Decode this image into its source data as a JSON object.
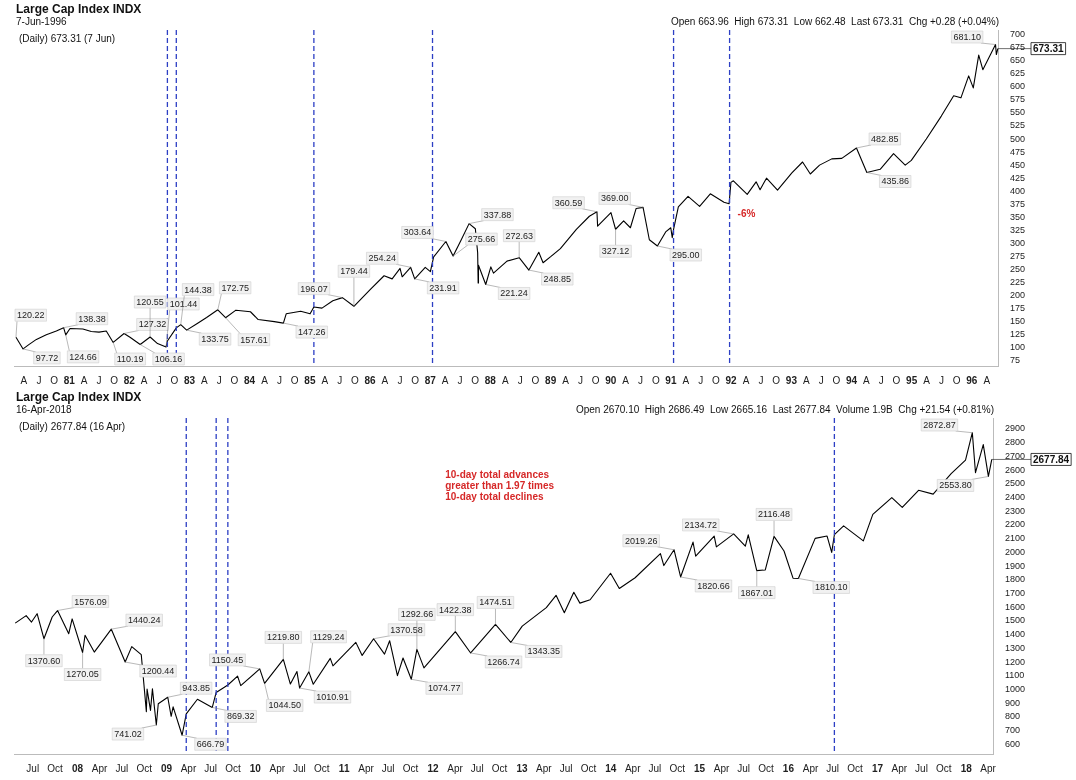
{
  "chart_data": [
    {
      "type": "line",
      "title": "Large Cap Index INDX",
      "subtitle": "7-Jun-1996",
      "legend": false,
      "grid": false,
      "marker": "none",
      "line_style": "solid",
      "xlim": [
        "1980-02-01",
        "1996-06-14"
      ],
      "xticks": [
        {
          "value": "1980-04",
          "label": "A"
        },
        {
          "value": "1980-07",
          "label": "J"
        },
        {
          "value": "1980-10",
          "label": "O"
        },
        {
          "value": "1981-01",
          "label": "81"
        },
        {
          "value": "1981-04",
          "label": "A"
        },
        {
          "value": "1981-07",
          "label": "J"
        },
        {
          "value": "1981-10",
          "label": "O"
        },
        {
          "value": "1982-01",
          "label": "82"
        },
        {
          "value": "1982-04",
          "label": "A"
        },
        {
          "value": "1982-07",
          "label": "J"
        },
        {
          "value": "1982-10",
          "label": "O"
        },
        {
          "value": "1983-01",
          "label": "83"
        },
        {
          "value": "1983-04",
          "label": "A"
        },
        {
          "value": "1983-07",
          "label": "J"
        },
        {
          "value": "1983-10",
          "label": "O"
        },
        {
          "value": "1984-01",
          "label": "84"
        },
        {
          "value": "1984-04",
          "label": "A"
        },
        {
          "value": "1984-07",
          "label": "J"
        },
        {
          "value": "1984-10",
          "label": "O"
        },
        {
          "value": "1985-01",
          "label": "85"
        },
        {
          "value": "1985-04",
          "label": "A"
        },
        {
          "value": "1985-07",
          "label": "J"
        },
        {
          "value": "1985-10",
          "label": "O"
        },
        {
          "value": "1986-01",
          "label": "86"
        },
        {
          "value": "1986-04",
          "label": "A"
        },
        {
          "value": "1986-07",
          "label": "J"
        },
        {
          "value": "1986-10",
          "label": "O"
        },
        {
          "value": "1987-01",
          "label": "87"
        },
        {
          "value": "1987-04",
          "label": "A"
        },
        {
          "value": "1987-07",
          "label": "J"
        },
        {
          "value": "1987-10",
          "label": "O"
        },
        {
          "value": "1988-01",
          "label": "88"
        },
        {
          "value": "1988-04",
          "label": "A"
        },
        {
          "value": "1988-07",
          "label": "J"
        },
        {
          "value": "1988-10",
          "label": "O"
        },
        {
          "value": "1989-01",
          "label": "89"
        },
        {
          "value": "1989-04",
          "label": "A"
        },
        {
          "value": "1989-07",
          "label": "J"
        },
        {
          "value": "1989-10",
          "label": "O"
        },
        {
          "value": "1990-01",
          "label": "90"
        },
        {
          "value": "1990-04",
          "label": "A"
        },
        {
          "value": "1990-07",
          "label": "J"
        },
        {
          "value": "1990-10",
          "label": "O"
        },
        {
          "value": "1991-01",
          "label": "91"
        },
        {
          "value": "1991-04",
          "label": "A"
        },
        {
          "value": "1991-07",
          "label": "J"
        },
        {
          "value": "1991-10",
          "label": "O"
        },
        {
          "value": "1992-01",
          "label": "92"
        },
        {
          "value": "1992-04",
          "label": "A"
        },
        {
          "value": "1992-07",
          "label": "J"
        },
        {
          "value": "1992-10",
          "label": "O"
        },
        {
          "value": "1993-01",
          "label": "93"
        },
        {
          "value": "1993-04",
          "label": "A"
        },
        {
          "value": "1993-07",
          "label": "J"
        },
        {
          "value": "1993-10",
          "label": "O"
        },
        {
          "value": "1994-01",
          "label": "94"
        },
        {
          "value": "1994-04",
          "label": "A"
        },
        {
          "value": "1994-07",
          "label": "J"
        },
        {
          "value": "1994-10",
          "label": "O"
        },
        {
          "value": "1995-01",
          "label": "95"
        },
        {
          "value": "1995-04",
          "label": "A"
        },
        {
          "value": "1995-07",
          "label": "J"
        },
        {
          "value": "1995-10",
          "label": "O"
        },
        {
          "value": "1996-01",
          "label": "96"
        },
        {
          "value": "1996-04",
          "label": "A"
        }
      ],
      "ylim": [
        65,
        709
      ],
      "yticks": [
        75,
        100,
        125,
        150,
        175,
        200,
        225,
        250,
        275,
        300,
        325,
        350,
        375,
        400,
        425,
        450,
        475,
        500,
        525,
        550,
        575,
        600,
        625,
        650,
        675,
        700
      ],
      "series": [
        {
          "color": "#000000",
          "x": [
            "1980-02-13",
            "1980-03-27",
            "1980-05-01",
            "1980-06-16",
            "1980-08-15",
            "1980-10-15",
            "1980-11-28",
            "1980-12-11",
            "1981-01-06",
            "1981-03-25",
            "1981-05-15",
            "1981-07-01",
            "1981-08-14",
            "1981-09-25",
            "1981-11-30",
            "1982-01-05",
            "1982-03-08",
            "1982-05-07",
            "1982-06-21",
            "1982-08-12",
            "1982-08-20",
            "1982-10-13",
            "1982-11-09",
            "1982-12-15",
            "1983-02-15",
            "1983-04-15",
            "1983-06-22",
            "1983-08-08",
            "1983-10-10",
            "1984-01-06",
            "1984-02-22",
            "1984-05-30",
            "1984-07-24",
            "1984-08-10",
            "1984-11-06",
            "1985-01-02",
            "1985-01-25",
            "1985-03-15",
            "1985-05-20",
            "1985-07-17",
            "1985-09-25",
            "1985-12-31",
            "1986-03-27",
            "1986-05-15",
            "1986-07-02",
            "1986-07-15",
            "1986-09-04",
            "1986-09-29",
            "1986-12-02",
            "1987-01-02",
            "1987-01-22",
            "1987-04-06",
            "1987-05-20",
            "1987-07-10",
            "1987-08-25",
            "1987-10-02",
            "1987-10-16",
            "1987-10-19",
            "1987-10-21",
            "1987-12-04",
            "1988-01-04",
            "1988-01-20",
            "1988-04-11",
            "1988-06-24",
            "1988-08-22",
            "1988-10-21",
            "1988-11-16",
            "1989-01-03",
            "1989-03-01",
            "1989-06-06",
            "1989-08-24",
            "1989-10-09",
            "1989-10-13",
            "1990-01-02",
            "1990-01-30",
            "1990-03-20",
            "1990-04-30",
            "1990-06-04",
            "1990-07-16",
            "1990-08-23",
            "1990-10-11",
            "1990-11-30",
            "1990-12-31",
            "1991-01-09",
            "1991-01-17",
            "1991-02-15",
            "1991-04-15",
            "1991-06-24",
            "1991-08-28",
            "1991-11-19",
            "1991-12-20",
            "1991-12-31",
            "1992-01-15",
            "1992-04-08",
            "1992-06-01",
            "1992-06-25",
            "1992-08-03",
            "1992-10-09",
            "1993-01-04",
            "1993-03-10",
            "1993-04-26",
            "1993-06-21",
            "1993-09-03",
            "1993-11-03",
            "1994-01-31",
            "1994-04-04",
            "1994-06-24",
            "1994-09-13",
            "1994-11-23",
            "1994-12-30",
            "1995-03-31",
            "1995-06-30",
            "1995-09-13",
            "1995-10-27",
            "1995-12-13",
            "1996-01-10",
            "1996-02-12",
            "1996-03-08",
            "1996-05-24",
            "1996-05-29",
            "1996-06-07"
          ],
          "values": [
            120.22,
            97.72,
            106,
            116,
            125,
            132,
            138.38,
            124.66,
            137,
            136,
            131,
            130,
            132,
            110.19,
            127.32,
            120,
            106.16,
            120.55,
            108,
            101.44,
            113,
            138,
            144.38,
            133.75,
            146,
            158,
            172.75,
            157.61,
            172,
            169,
            154,
            150,
            147.26,
            165,
            170,
            165,
            178,
            176,
            190,
            196.07,
            179.44,
            211,
            238,
            232,
            252,
            236,
            254.24,
            231.91,
            254,
            246,
            274,
            303.64,
            275.66,
            308,
            337.88,
            328,
            282,
            224,
            258,
            221.24,
            255,
            243,
            266,
            272.63,
            248.85,
            283,
            263,
            275,
            290,
            327,
            352,
            360.59,
            333,
            359,
            327.12,
            343,
            330,
            367,
            369,
            307,
            295,
            322,
            330,
            311,
            327,
            370,
            390,
            371,
            395,
            379,
            376,
            417,
            420,
            394,
            418,
            403,
            425,
            402,
            435,
            456,
            433,
            450,
            462,
            463,
            482.85,
            435.86,
            442,
            472,
            450,
            459,
            500,
            544,
            583,
            579,
            621,
            598,
            661,
            633,
            681.1,
            662,
            673.31
          ]
        }
      ],
      "ref_lines": [
        {
          "axis": "x",
          "value": "1982-08-20",
          "color": "#2d3fc4",
          "line_style": "dashed"
        },
        {
          "axis": "x",
          "value": "1982-10-13",
          "color": "#2d3fc4",
          "line_style": "dashed"
        },
        {
          "axis": "x",
          "value": "1985-01-25",
          "color": "#2d3fc4",
          "line_style": "dashed"
        },
        {
          "axis": "x",
          "value": "1987-01-15",
          "color": "#2d3fc4",
          "line_style": "dashed"
        },
        {
          "axis": "x",
          "value": "1991-01-17",
          "color": "#2d3fc4",
          "line_style": "dashed"
        },
        {
          "axis": "x",
          "value": "1991-12-23",
          "color": "#2d3fc4",
          "line_style": "dashed",
          "label": "-6%"
        }
      ],
      "annotations": [
        "(Daily) 673.31 (7 Jun)",
        "Open 663.96  High 673.31  Low 662.48  Last 673.31  Chg +0.28 (+0.04%)",
        {
          "text": "120.22",
          "x": "1980-02-13",
          "y": 120.22
        },
        {
          "text": "97.72",
          "x": "1980-03-27",
          "y": 97.72
        },
        {
          "text": "138.38",
          "x": "1980-11-28",
          "y": 138.38
        },
        {
          "text": "124.66",
          "x": "1980-12-11",
          "y": 124.66
        },
        {
          "text": "110.19",
          "x": "1981-09-25",
          "y": 110.19
        },
        {
          "text": "127.32",
          "x": "1981-11-30",
          "y": 127.32
        },
        {
          "text": "106.16",
          "x": "1982-03-08",
          "y": 106.16
        },
        {
          "text": "120.55",
          "x": "1982-05-07",
          "y": 120.55
        },
        {
          "text": "101.44",
          "x": "1982-08-12",
          "y": 101.44
        },
        {
          "text": "144.38",
          "x": "1982-11-09",
          "y": 144.38
        },
        {
          "text": "133.75",
          "x": "1982-12-15",
          "y": 133.75
        },
        {
          "text": "172.75",
          "x": "1983-06-22",
          "y": 172.75
        },
        {
          "text": "157.61",
          "x": "1983-08-08",
          "y": 157.61
        },
        {
          "text": "147.26",
          "x": "1984-07-24",
          "y": 147.26
        },
        {
          "text": "196.07",
          "x": "1985-07-17",
          "y": 196.07
        },
        {
          "text": "179.44",
          "x": "1985-09-25",
          "y": 179.44
        },
        {
          "text": "254.24",
          "x": "1986-09-04",
          "y": 254.24
        },
        {
          "text": "231.91",
          "x": "1986-09-29",
          "y": 231.91
        },
        {
          "text": "303.64",
          "x": "1987-04-06",
          "y": 303.64
        },
        {
          "text": "275.66",
          "x": "1987-05-20",
          "y": 275.66
        },
        {
          "text": "337.88",
          "x": "1987-08-25",
          "y": 337.88
        },
        {
          "text": "221.24",
          "x": "1987-12-04",
          "y": 221.24
        },
        {
          "text": "272.63",
          "x": "1988-06-24",
          "y": 272.63
        },
        {
          "text": "248.85",
          "x": "1988-08-22",
          "y": 248.85
        },
        {
          "text": "360.59",
          "x": "1989-10-09",
          "y": 360.59
        },
        {
          "text": "327.12",
          "x": "1990-01-30",
          "y": 327.12
        },
        {
          "text": "369.00",
          "x": "1990-07-16",
          "y": 369
        },
        {
          "text": "295.00",
          "x": "1990-10-11",
          "y": 295
        },
        {
          "text": "482.85",
          "x": "1994-01-31",
          "y": 482.85
        },
        {
          "text": "435.86",
          "x": "1994-04-04",
          "y": 435.86
        },
        {
          "text": "681.10",
          "x": "1996-05-24",
          "y": 681.1
        },
        {
          "text": "673.31",
          "x": "1996-06-07",
          "y": 673.31
        }
      ]
    },
    {
      "type": "line",
      "title": "Large Cap Index INDX",
      "subtitle": "16-Apr-2018",
      "legend": false,
      "grid": false,
      "marker": "none",
      "line_style": "solid",
      "xlim": [
        "2007-04-15",
        "2018-04-25"
      ],
      "xticks": [
        {
          "value": "2007-07",
          "label": "Jul"
        },
        {
          "value": "2007-10",
          "label": "Oct"
        },
        {
          "value": "2008-01",
          "label": "08"
        },
        {
          "value": "2008-04",
          "label": "Apr"
        },
        {
          "value": "2008-07",
          "label": "Jul"
        },
        {
          "value": "2008-10",
          "label": "Oct"
        },
        {
          "value": "2009-01",
          "label": "09"
        },
        {
          "value": "2009-04",
          "label": "Apr"
        },
        {
          "value": "2009-07",
          "label": "Jul"
        },
        {
          "value": "2009-10",
          "label": "Oct"
        },
        {
          "value": "2010-01",
          "label": "10"
        },
        {
          "value": "2010-04",
          "label": "Apr"
        },
        {
          "value": "2010-07",
          "label": "Jul"
        },
        {
          "value": "2010-10",
          "label": "Oct"
        },
        {
          "value": "2011-01",
          "label": "11"
        },
        {
          "value": "2011-04",
          "label": "Apr"
        },
        {
          "value": "2011-07",
          "label": "Jul"
        },
        {
          "value": "2011-10",
          "label": "Oct"
        },
        {
          "value": "2012-01",
          "label": "12"
        },
        {
          "value": "2012-04",
          "label": "Apr"
        },
        {
          "value": "2012-07",
          "label": "Jul"
        },
        {
          "value": "2012-10",
          "label": "Oct"
        },
        {
          "value": "2013-01",
          "label": "13"
        },
        {
          "value": "2013-04",
          "label": "Apr"
        },
        {
          "value": "2013-07",
          "label": "Jul"
        },
        {
          "value": "2013-10",
          "label": "Oct"
        },
        {
          "value": "2014-01",
          "label": "14"
        },
        {
          "value": "2014-04",
          "label": "Apr"
        },
        {
          "value": "2014-07",
          "label": "Jul"
        },
        {
          "value": "2014-10",
          "label": "Oct"
        },
        {
          "value": "2015-01",
          "label": "15"
        },
        {
          "value": "2015-04",
          "label": "Apr"
        },
        {
          "value": "2015-07",
          "label": "Jul"
        },
        {
          "value": "2015-10",
          "label": "Oct"
        },
        {
          "value": "2016-01",
          "label": "16"
        },
        {
          "value": "2016-04",
          "label": "Apr"
        },
        {
          "value": "2016-07",
          "label": "Jul"
        },
        {
          "value": "2016-10",
          "label": "Oct"
        },
        {
          "value": "2017-01",
          "label": "17"
        },
        {
          "value": "2017-04",
          "label": "Apr"
        },
        {
          "value": "2017-07",
          "label": "Jul"
        },
        {
          "value": "2017-10",
          "label": "Oct"
        },
        {
          "value": "2018-01",
          "label": "18"
        },
        {
          "value": "2018-04",
          "label": "Apr"
        }
      ],
      "ylim": [
        530,
        2980
      ],
      "yticks": [
        600,
        700,
        800,
        900,
        1000,
        1100,
        1200,
        1300,
        1400,
        1500,
        1600,
        1700,
        1800,
        1900,
        2000,
        2100,
        2200,
        2300,
        2400,
        2500,
        2600,
        2700,
        2800,
        2900
      ],
      "series": [
        {
          "color": "#000000",
          "x": [
            "2007-04-20",
            "2007-06-04",
            "2007-06-26",
            "2007-07-19",
            "2007-08-16",
            "2007-09-19",
            "2007-10-11",
            "2007-11-26",
            "2007-12-10",
            "2008-01-22",
            "2008-02-01",
            "2008-03-10",
            "2008-05-19",
            "2008-07-15",
            "2008-08-11",
            "2008-09-19",
            "2008-10-10",
            "2008-10-13",
            "2008-10-27",
            "2008-11-04",
            "2008-11-20",
            "2008-11-28",
            "2009-01-06",
            "2009-01-20",
            "2009-01-28",
            "2009-03-06",
            "2009-03-23",
            "2009-05-08",
            "2009-07-08",
            "2009-07-24",
            "2009-09-10",
            "2009-10-20",
            "2009-11-02",
            "2010-01-19",
            "2010-02-08",
            "2010-04-26",
            "2010-05-25",
            "2010-06-21",
            "2010-07-02",
            "2010-08-09",
            "2010-08-27",
            "2010-11-05",
            "2010-11-16",
            "2011-02-18",
            "2011-03-16",
            "2011-05-02",
            "2011-06-16",
            "2011-07-07",
            "2011-08-08",
            "2011-08-31",
            "2011-10-04",
            "2011-10-27",
            "2011-11-25",
            "2012-04-02",
            "2012-06-04",
            "2012-09-14",
            "2012-11-16",
            "2013-01-02",
            "2013-04-11",
            "2013-05-21",
            "2013-06-24",
            "2013-08-02",
            "2013-08-27",
            "2013-10-08",
            "2013-12-31",
            "2014-02-05",
            "2014-04-11",
            "2014-07-24",
            "2014-08-07",
            "2014-09-18",
            "2014-10-15",
            "2014-12-05",
            "2014-12-16",
            "2015-03-02",
            "2015-03-11",
            "2015-05-21",
            "2015-07-08",
            "2015-07-20",
            "2015-08-24",
            "2015-09-28",
            "2015-11-03",
            "2015-12-14",
            "2016-01-20",
            "2016-02-11",
            "2016-04-20",
            "2016-06-08",
            "2016-06-27",
            "2016-07-08",
            "2016-08-15",
            "2016-11-04",
            "2016-12-13",
            "2017-03-01",
            "2017-04-13",
            "2017-06-19",
            "2017-08-18",
            "2017-10-31",
            "2017-12-29",
            "2018-01-26",
            "2018-02-08",
            "2018-03-12",
            "2018-04-02",
            "2018-04-16"
          ],
          "values": [
            1484,
            1539,
            1492,
            1553,
            1370.6,
            1529,
            1576.09,
            1407,
            1515,
            1270.05,
            1396,
            1273,
            1440.24,
            1200.44,
            1313,
            1255,
            839,
            1003,
            848,
            1005,
            741.02,
            896,
            943.85,
            805,
            874,
            666.79,
            822,
            929,
            869.32,
            979,
            1033,
            1098,
            1029,
            1150.45,
            1044.5,
            1219.8,
            1040,
            1131,
            1010.91,
            1129.24,
            1039,
            1227,
            1173,
            1344,
            1249,
            1370.58,
            1258,
            1356,
            1101,
            1230,
            1074.77,
            1292.66,
            1158,
            1422.38,
            1266.74,
            1474.51,
            1343.35,
            1462,
            1597,
            1687,
            1560,
            1709,
            1630,
            1655,
            1848,
            1737,
            1815,
            1991,
            1904,
            2019.26,
            1820.66,
            2075,
            1972,
            2119,
            2040,
            2134.72,
            2046,
            2128,
            1867.01,
            1872,
            2116.48,
            2010,
            1812,
            1810.1,
            2102,
            2119,
            2000,
            2129,
            2193,
            2084,
            2277,
            2400,
            2328,
            2453,
            2425,
            2575,
            2673,
            2872.87,
            2581,
            2786,
            2553.8,
            2677.84
          ]
        }
      ],
      "ref_lines": [
        {
          "axis": "x",
          "value": "2009-03-23",
          "color": "#2d3fc4",
          "line_style": "dashed"
        },
        {
          "axis": "x",
          "value": "2009-07-24",
          "color": "#2d3fc4",
          "line_style": "dashed"
        },
        {
          "axis": "x",
          "value": "2009-09-10",
          "color": "#2d3fc4",
          "line_style": "dashed"
        },
        {
          "axis": "x",
          "value": "2016-07-08",
          "color": "#2d3fc4",
          "line_style": "dashed"
        }
      ],
      "annotations": [
        "(Daily) 2677.84 (16 Apr)",
        "Open 2670.10  High 2686.49  Low 2665.16  Last 2677.84  Volume 1.9B  Chg +21.54 (+0.81%)",
        "10-day total advances\ngreater than 1.97 times\n10-day total declines",
        {
          "text": "1576.09",
          "x": "2007-10-11",
          "y": 1576.09
        },
        {
          "text": "1370.60",
          "x": "2007-08-16",
          "y": 1370.6
        },
        {
          "text": "1270.05",
          "x": "2008-01-22",
          "y": 1270.05
        },
        {
          "text": "1440.24",
          "x": "2008-05-19",
          "y": 1440.24
        },
        {
          "text": "1200.44",
          "x": "2008-07-15",
          "y": 1200.44
        },
        {
          "text": "741.02",
          "x": "2008-11-20",
          "y": 741.02
        },
        {
          "text": "943.85",
          "x": "2009-01-06",
          "y": 943.85
        },
        {
          "text": "666.79",
          "x": "2009-03-06",
          "y": 666.79
        },
        {
          "text": "869.32",
          "x": "2009-07-08",
          "y": 869.32
        },
        {
          "text": "1150.45",
          "x": "2010-01-19",
          "y": 1150.45
        },
        {
          "text": "1044.50",
          "x": "2010-02-08",
          "y": 1044.5
        },
        {
          "text": "1219.80",
          "x": "2010-04-26",
          "y": 1219.8
        },
        {
          "text": "1010.91",
          "x": "2010-07-02",
          "y": 1010.91
        },
        {
          "text": "1129.24",
          "x": "2010-08-09",
          "y": 1129.24
        },
        {
          "text": "1370.58",
          "x": "2011-05-02",
          "y": 1370.58
        },
        {
          "text": "1074.77",
          "x": "2011-10-04",
          "y": 1074.77
        },
        {
          "text": "1292.66",
          "x": "2011-10-27",
          "y": 1292.66
        },
        {
          "text": "1422.38",
          "x": "2012-04-02",
          "y": 1422.38
        },
        {
          "text": "1266.74",
          "x": "2012-06-04",
          "y": 1266.74
        },
        {
          "text": "1474.51",
          "x": "2012-09-14",
          "y": 1474.51
        },
        {
          "text": "1343.35",
          "x": "2012-11-16",
          "y": 1343.35
        },
        {
          "text": "2019.26",
          "x": "2014-09-18",
          "y": 2019.26
        },
        {
          "text": "1820.66",
          "x": "2014-10-15",
          "y": 1820.66
        },
        {
          "text": "2134.72",
          "x": "2015-05-21",
          "y": 2134.72
        },
        {
          "text": "1867.01",
          "x": "2015-08-24",
          "y": 1867.01
        },
        {
          "text": "2116.48",
          "x": "2015-11-03",
          "y": 2116.48
        },
        {
          "text": "1810.10",
          "x": "2016-02-11",
          "y": 1810.1
        },
        {
          "text": "2872.87",
          "x": "2018-01-26",
          "y": 2872.87
        },
        {
          "text": "2553.80",
          "x": "2018-04-02",
          "y": 2553.8
        },
        {
          "text": "2677.84",
          "x": "2018-04-16",
          "y": 2677.84
        }
      ]
    }
  ]
}
